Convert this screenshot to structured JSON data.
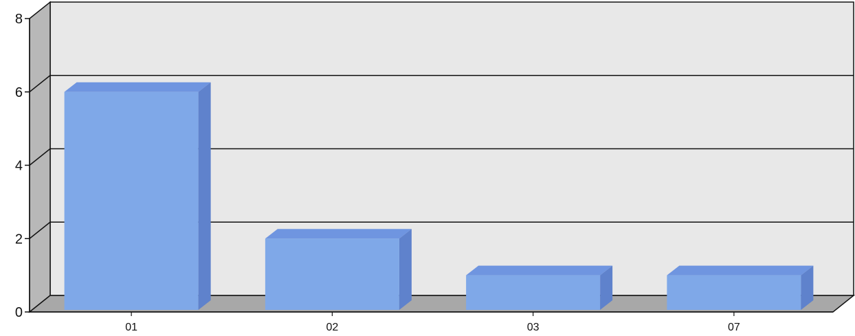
{
  "chart_data": {
    "type": "bar",
    "categories": [
      "01",
      "02",
      "03",
      "07"
    ],
    "values": [
      6,
      2,
      1,
      1
    ],
    "y_ticks": [
      "0",
      "2",
      "4",
      "6",
      "8"
    ],
    "ylim": [
      0,
      8
    ],
    "grid": true,
    "three_d": true,
    "title": "",
    "xlabel": "",
    "ylabel": "",
    "colors": {
      "bar_front": "#7fa8e8",
      "bar_top": "#6f95e0",
      "bar_side": "#5f82cc",
      "back_wall": "#e8e8e8",
      "side_wall": "#b8b8b8",
      "floor": "#a8a8a8",
      "grid_line": "#111111"
    }
  }
}
